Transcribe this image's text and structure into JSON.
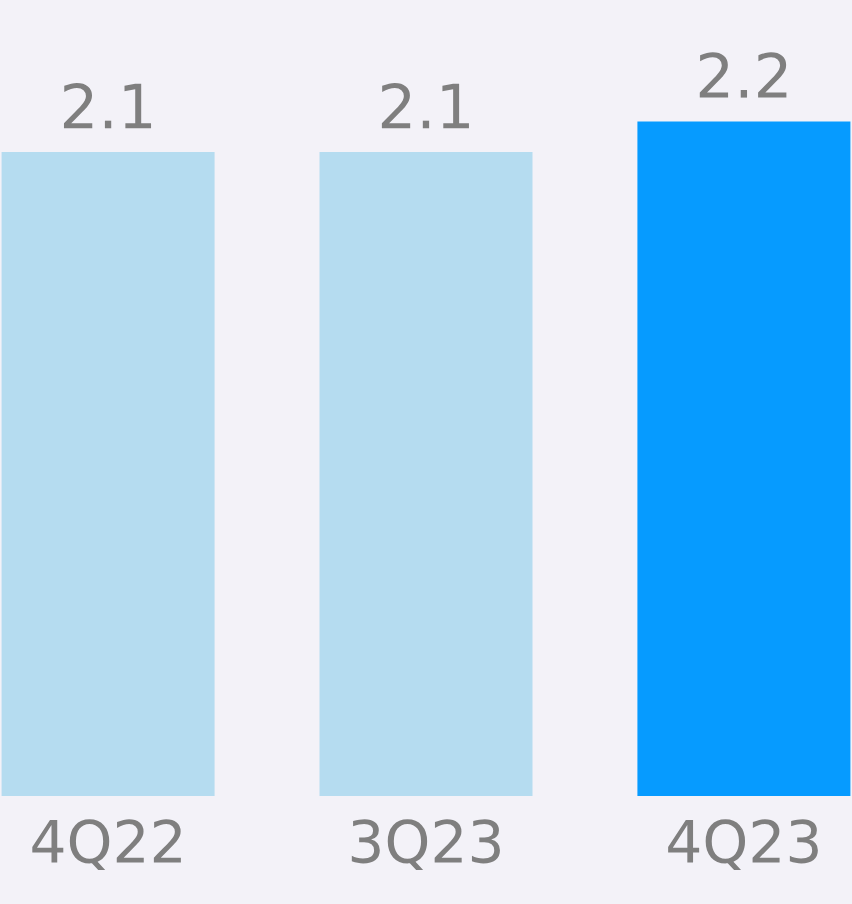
{
  "chart_data": {
    "type": "bar",
    "categories": [
      "4Q22",
      "3Q23",
      "4Q23"
    ],
    "values": [
      2.1,
      2.1,
      2.2
    ],
    "colors": [
      "#b5dcf0",
      "#b5dcf0",
      "#069bff"
    ],
    "data_labels": true,
    "grid": false,
    "legend": false
  }
}
